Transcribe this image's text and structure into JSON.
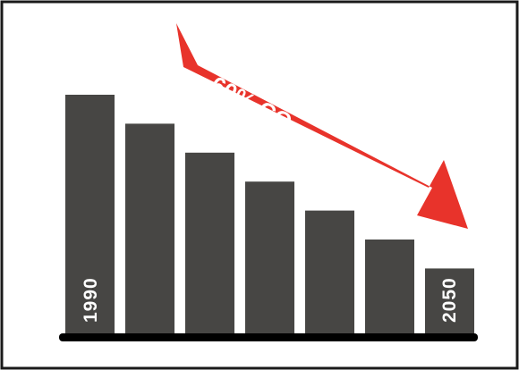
{
  "chart_data": {
    "type": "bar",
    "categories": [
      "1990",
      "",
      "",
      "",
      "",
      "",
      "2050"
    ],
    "values": [
      100,
      88,
      76,
      64,
      52,
      40,
      28
    ],
    "start_label": "1990",
    "end_label": "2050",
    "annotation_prefix": "-60% CO",
    "annotation_subscript": "2",
    "grid": false,
    "legend": "none"
  },
  "colors": {
    "bar": "#474644",
    "axis": "#000000",
    "arrow": "#e8332b",
    "frame": "#1a1a1a",
    "text_on_dark": "#ffffff"
  }
}
